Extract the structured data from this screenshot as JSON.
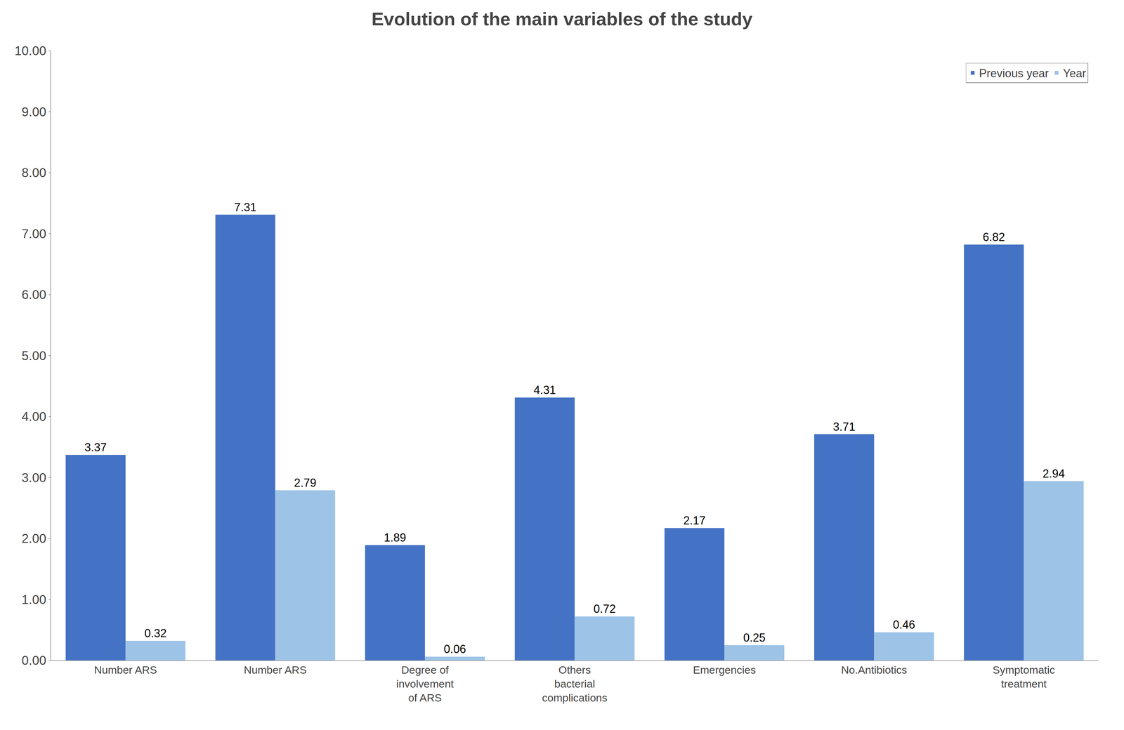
{
  "chart_data": {
    "type": "bar",
    "title": "Evolution of the main variables of the study",
    "categories": [
      "Number ARS",
      "Number ARS",
      "Degree of\ninvolvement\nof ARS",
      "Others\nbacterial\ncomplications",
      "Emergencies",
      "No.Antibiotics",
      "Symptomatic\ntreatment"
    ],
    "series": [
      {
        "name": "Previous year",
        "color": "#4472C4",
        "values": [
          3.37,
          7.31,
          1.89,
          4.31,
          2.17,
          3.71,
          6.82
        ]
      },
      {
        "name": "Year",
        "color": "#9DC3E6",
        "values": [
          0.32,
          2.79,
          0.06,
          0.72,
          0.25,
          0.46,
          2.94
        ]
      }
    ],
    "ylim": [
      0,
      10.0
    ],
    "yticks": [
      {
        "value": 0.0,
        "label": "0.00"
      },
      {
        "value": 1.0,
        "label": "1.00"
      },
      {
        "value": 2.0,
        "label": "2.00"
      },
      {
        "value": 3.0,
        "label": "3.00"
      },
      {
        "value": 4.0,
        "label": "4.00"
      },
      {
        "value": 5.0,
        "label": "5.00"
      },
      {
        "value": 6.0,
        "label": "6.00"
      },
      {
        "value": 7.0,
        "label": "7.00"
      },
      {
        "value": 8.0,
        "label": "8.00"
      },
      {
        "value": 9.0,
        "label": "9.00"
      },
      {
        "value": 10.0,
        "label": "10.00"
      }
    ],
    "grid": false,
    "legend": "upper right",
    "data_labels": true
  }
}
